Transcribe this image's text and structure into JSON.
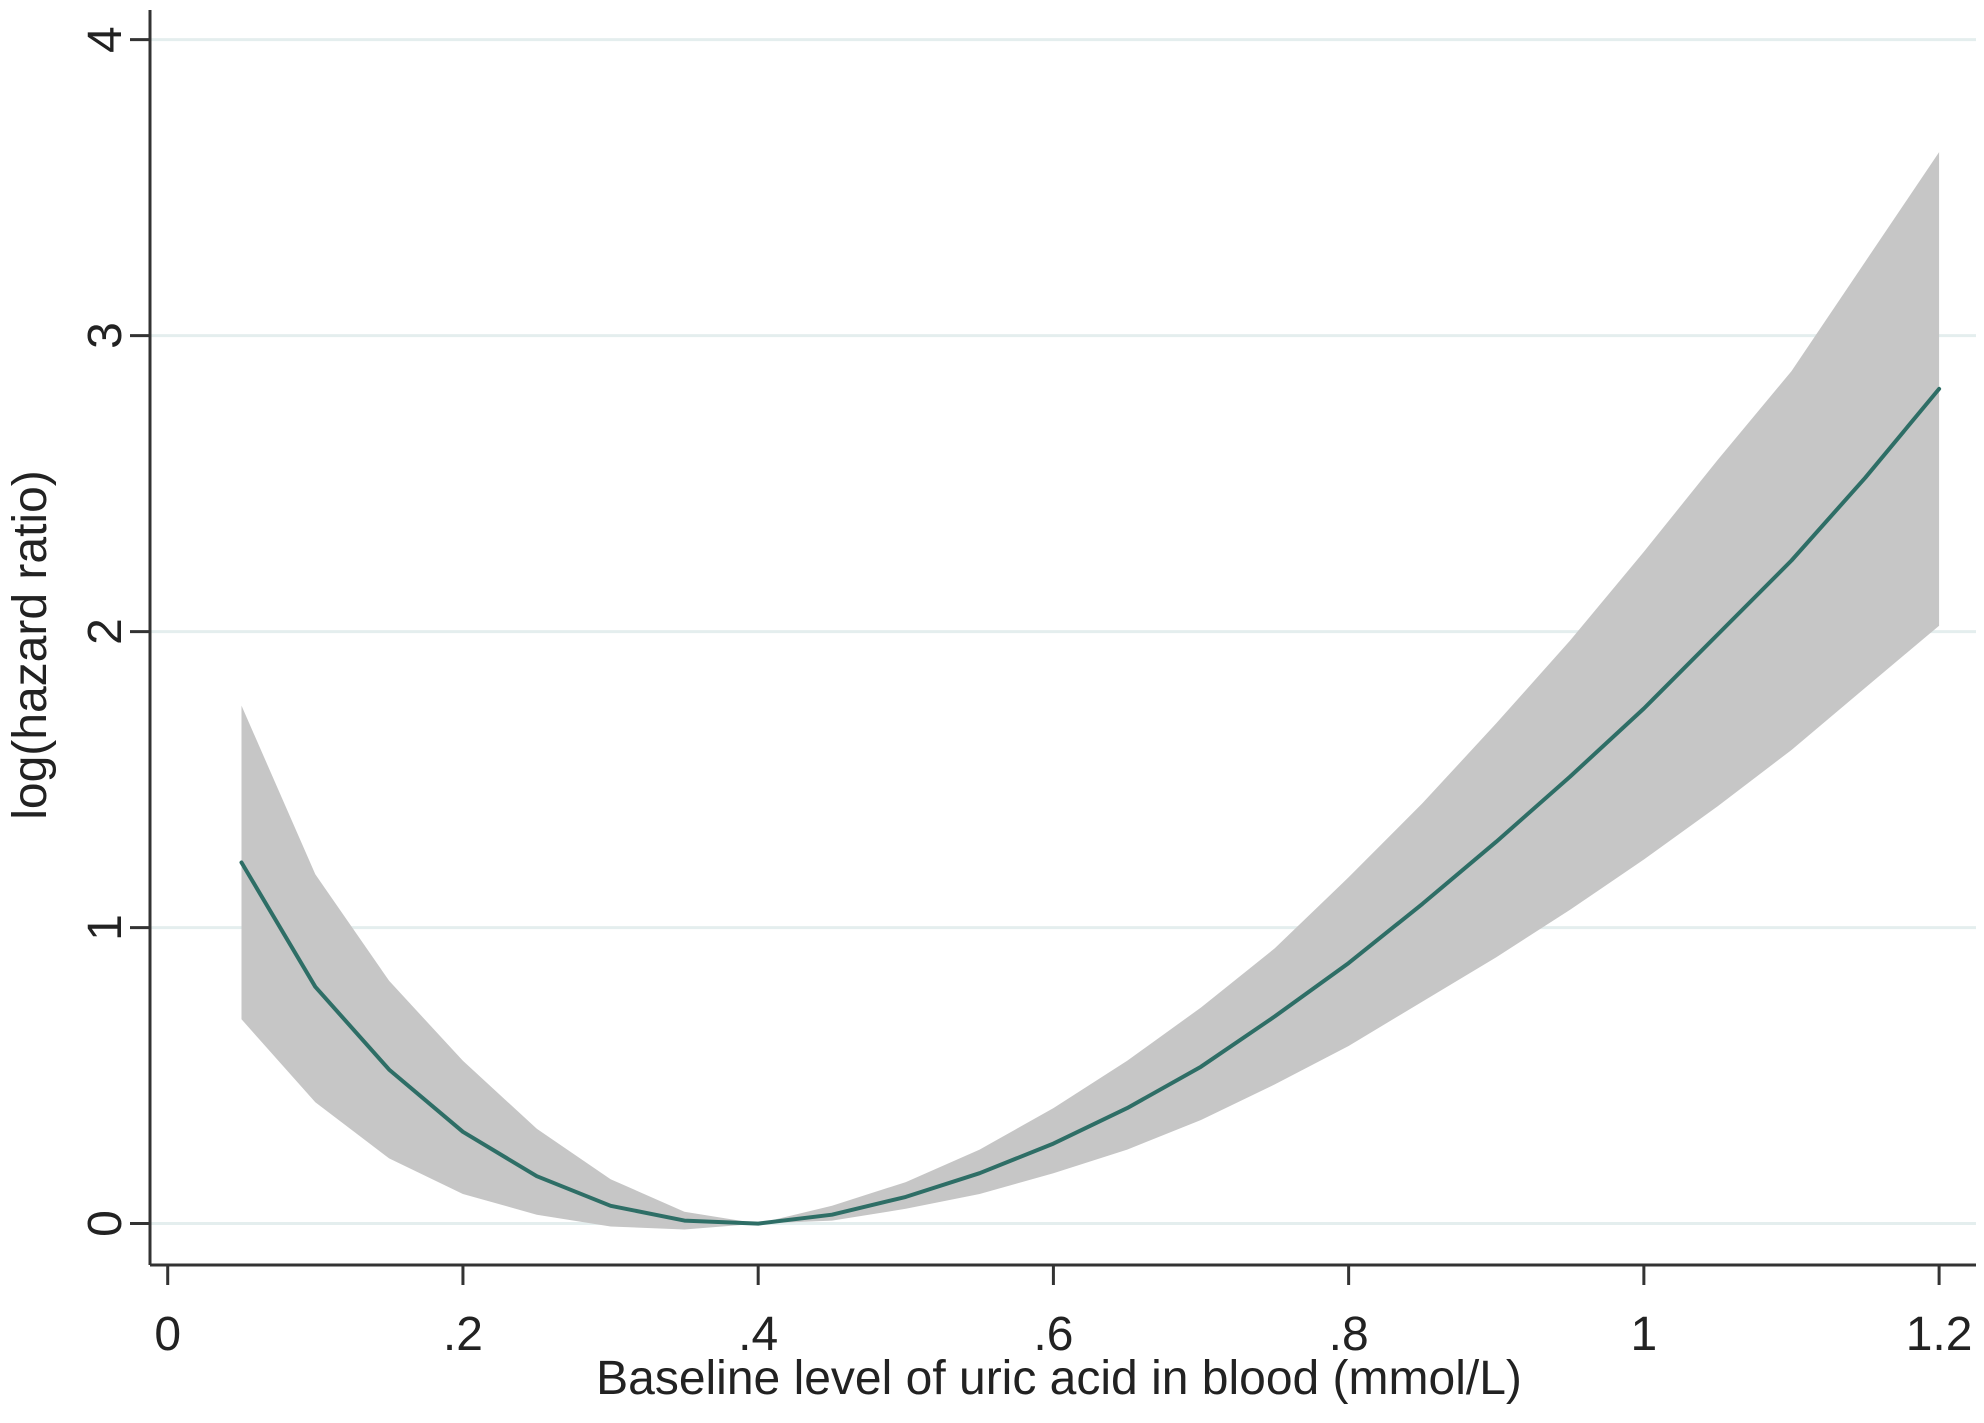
{
  "chart_data": {
    "type": "line",
    "title": "",
    "xlabel": "Baseline level of uric acid in blood (mmol/L)",
    "ylabel": "log(hazard ratio)",
    "xlim": [
      -0.012,
      1.225
    ],
    "ylim": [
      -0.14,
      4.1
    ],
    "grid": true,
    "x_ticks": [
      0,
      0.2,
      0.4,
      0.6,
      0.8,
      1.0,
      1.2
    ],
    "x_tick_labels": [
      "0",
      ".2",
      ".4",
      ".6",
      ".8",
      "1",
      "1.2"
    ],
    "y_ticks": [
      0,
      1,
      2,
      3,
      4
    ],
    "y_tick_labels": [
      "0",
      "1",
      "2",
      "3",
      "4"
    ],
    "colors": {
      "line": "#2e6e66",
      "band": "#c6c6c6",
      "grid": "#e4eeee",
      "axis": "#333333"
    },
    "series": [
      {
        "type": "line",
        "x": [
          0.05,
          0.1,
          0.15,
          0.2,
          0.25,
          0.3,
          0.35,
          0.4,
          0.45,
          0.5,
          0.55,
          0.6,
          0.65,
          0.7,
          0.75,
          0.8,
          0.85,
          0.9,
          0.95,
          1.0,
          1.05,
          1.1,
          1.15,
          1.2
        ],
        "y": [
          1.22,
          0.8,
          0.52,
          0.31,
          0.16,
          0.06,
          0.01,
          0.0,
          0.03,
          0.09,
          0.17,
          0.27,
          0.39,
          0.53,
          0.7,
          0.88,
          1.08,
          1.29,
          1.51,
          1.74,
          1.99,
          2.24,
          2.52,
          2.82
        ]
      },
      {
        "type": "band",
        "x": [
          0.05,
          0.1,
          0.15,
          0.2,
          0.25,
          0.3,
          0.35,
          0.4,
          0.45,
          0.5,
          0.55,
          0.6,
          0.65,
          0.7,
          0.75,
          0.8,
          0.85,
          0.9,
          0.95,
          1.0,
          1.05,
          1.1,
          1.15,
          1.2
        ],
        "lower": [
          0.69,
          0.41,
          0.22,
          0.1,
          0.03,
          -0.01,
          -0.02,
          0.0,
          0.01,
          0.05,
          0.1,
          0.17,
          0.25,
          0.35,
          0.47,
          0.6,
          0.75,
          0.9,
          1.06,
          1.23,
          1.41,
          1.6,
          1.81,
          2.02
        ],
        "upper": [
          1.75,
          1.18,
          0.82,
          0.55,
          0.32,
          0.15,
          0.04,
          0.0,
          0.06,
          0.14,
          0.25,
          0.39,
          0.55,
          0.73,
          0.93,
          1.17,
          1.42,
          1.69,
          1.97,
          2.27,
          2.58,
          2.88,
          3.25,
          3.62
        ]
      }
    ]
  }
}
